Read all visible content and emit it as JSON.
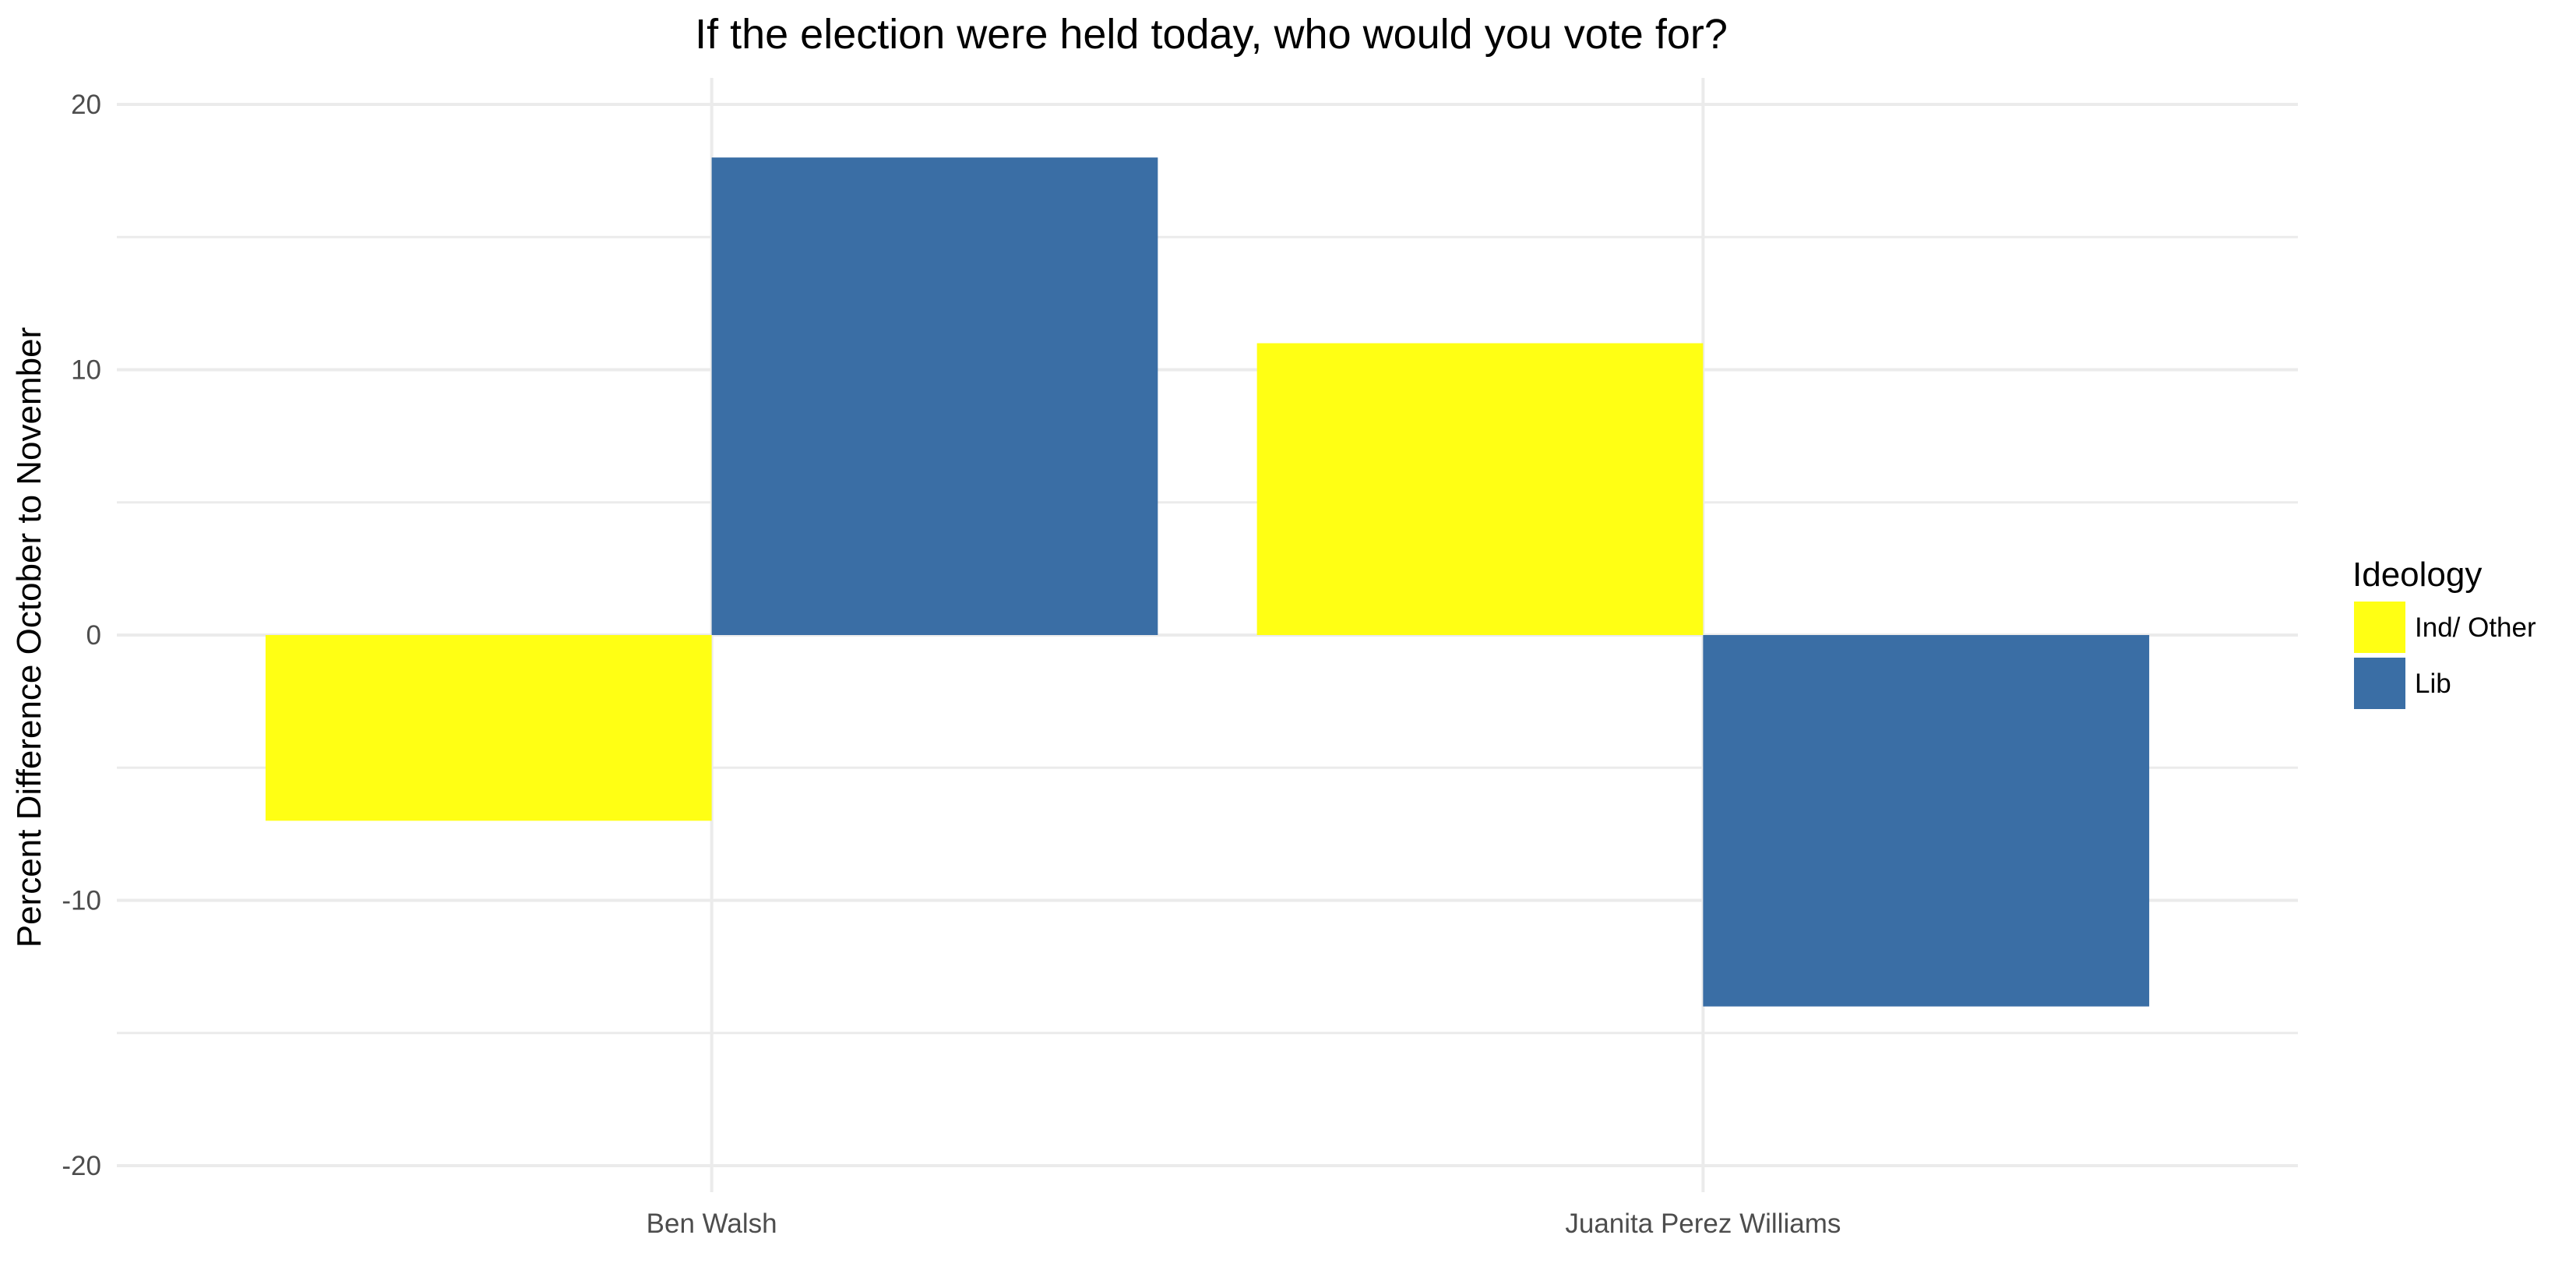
{
  "chart_data": {
    "type": "bar",
    "title": "If the election were held today, who would you vote for?",
    "xlabel": "",
    "ylabel": "Percent Difference October to November",
    "categories": [
      "Ben Walsh",
      "Juanita Perez Williams"
    ],
    "series": [
      {
        "name": "Ind/ Other",
        "color": "#FFFF14",
        "values": [
          -7,
          11
        ]
      },
      {
        "name": "Lib",
        "color": "#3A6EA5",
        "values": [
          18,
          -14
        ]
      }
    ],
    "ylim": [
      -21,
      21
    ],
    "yticks": [
      -20,
      -10,
      0,
      10,
      20
    ],
    "ytick_labels": [
      "-20",
      "-10",
      "0",
      "10",
      "20"
    ],
    "grid": true,
    "legend": {
      "title": "Ideology",
      "placement": "right"
    }
  }
}
